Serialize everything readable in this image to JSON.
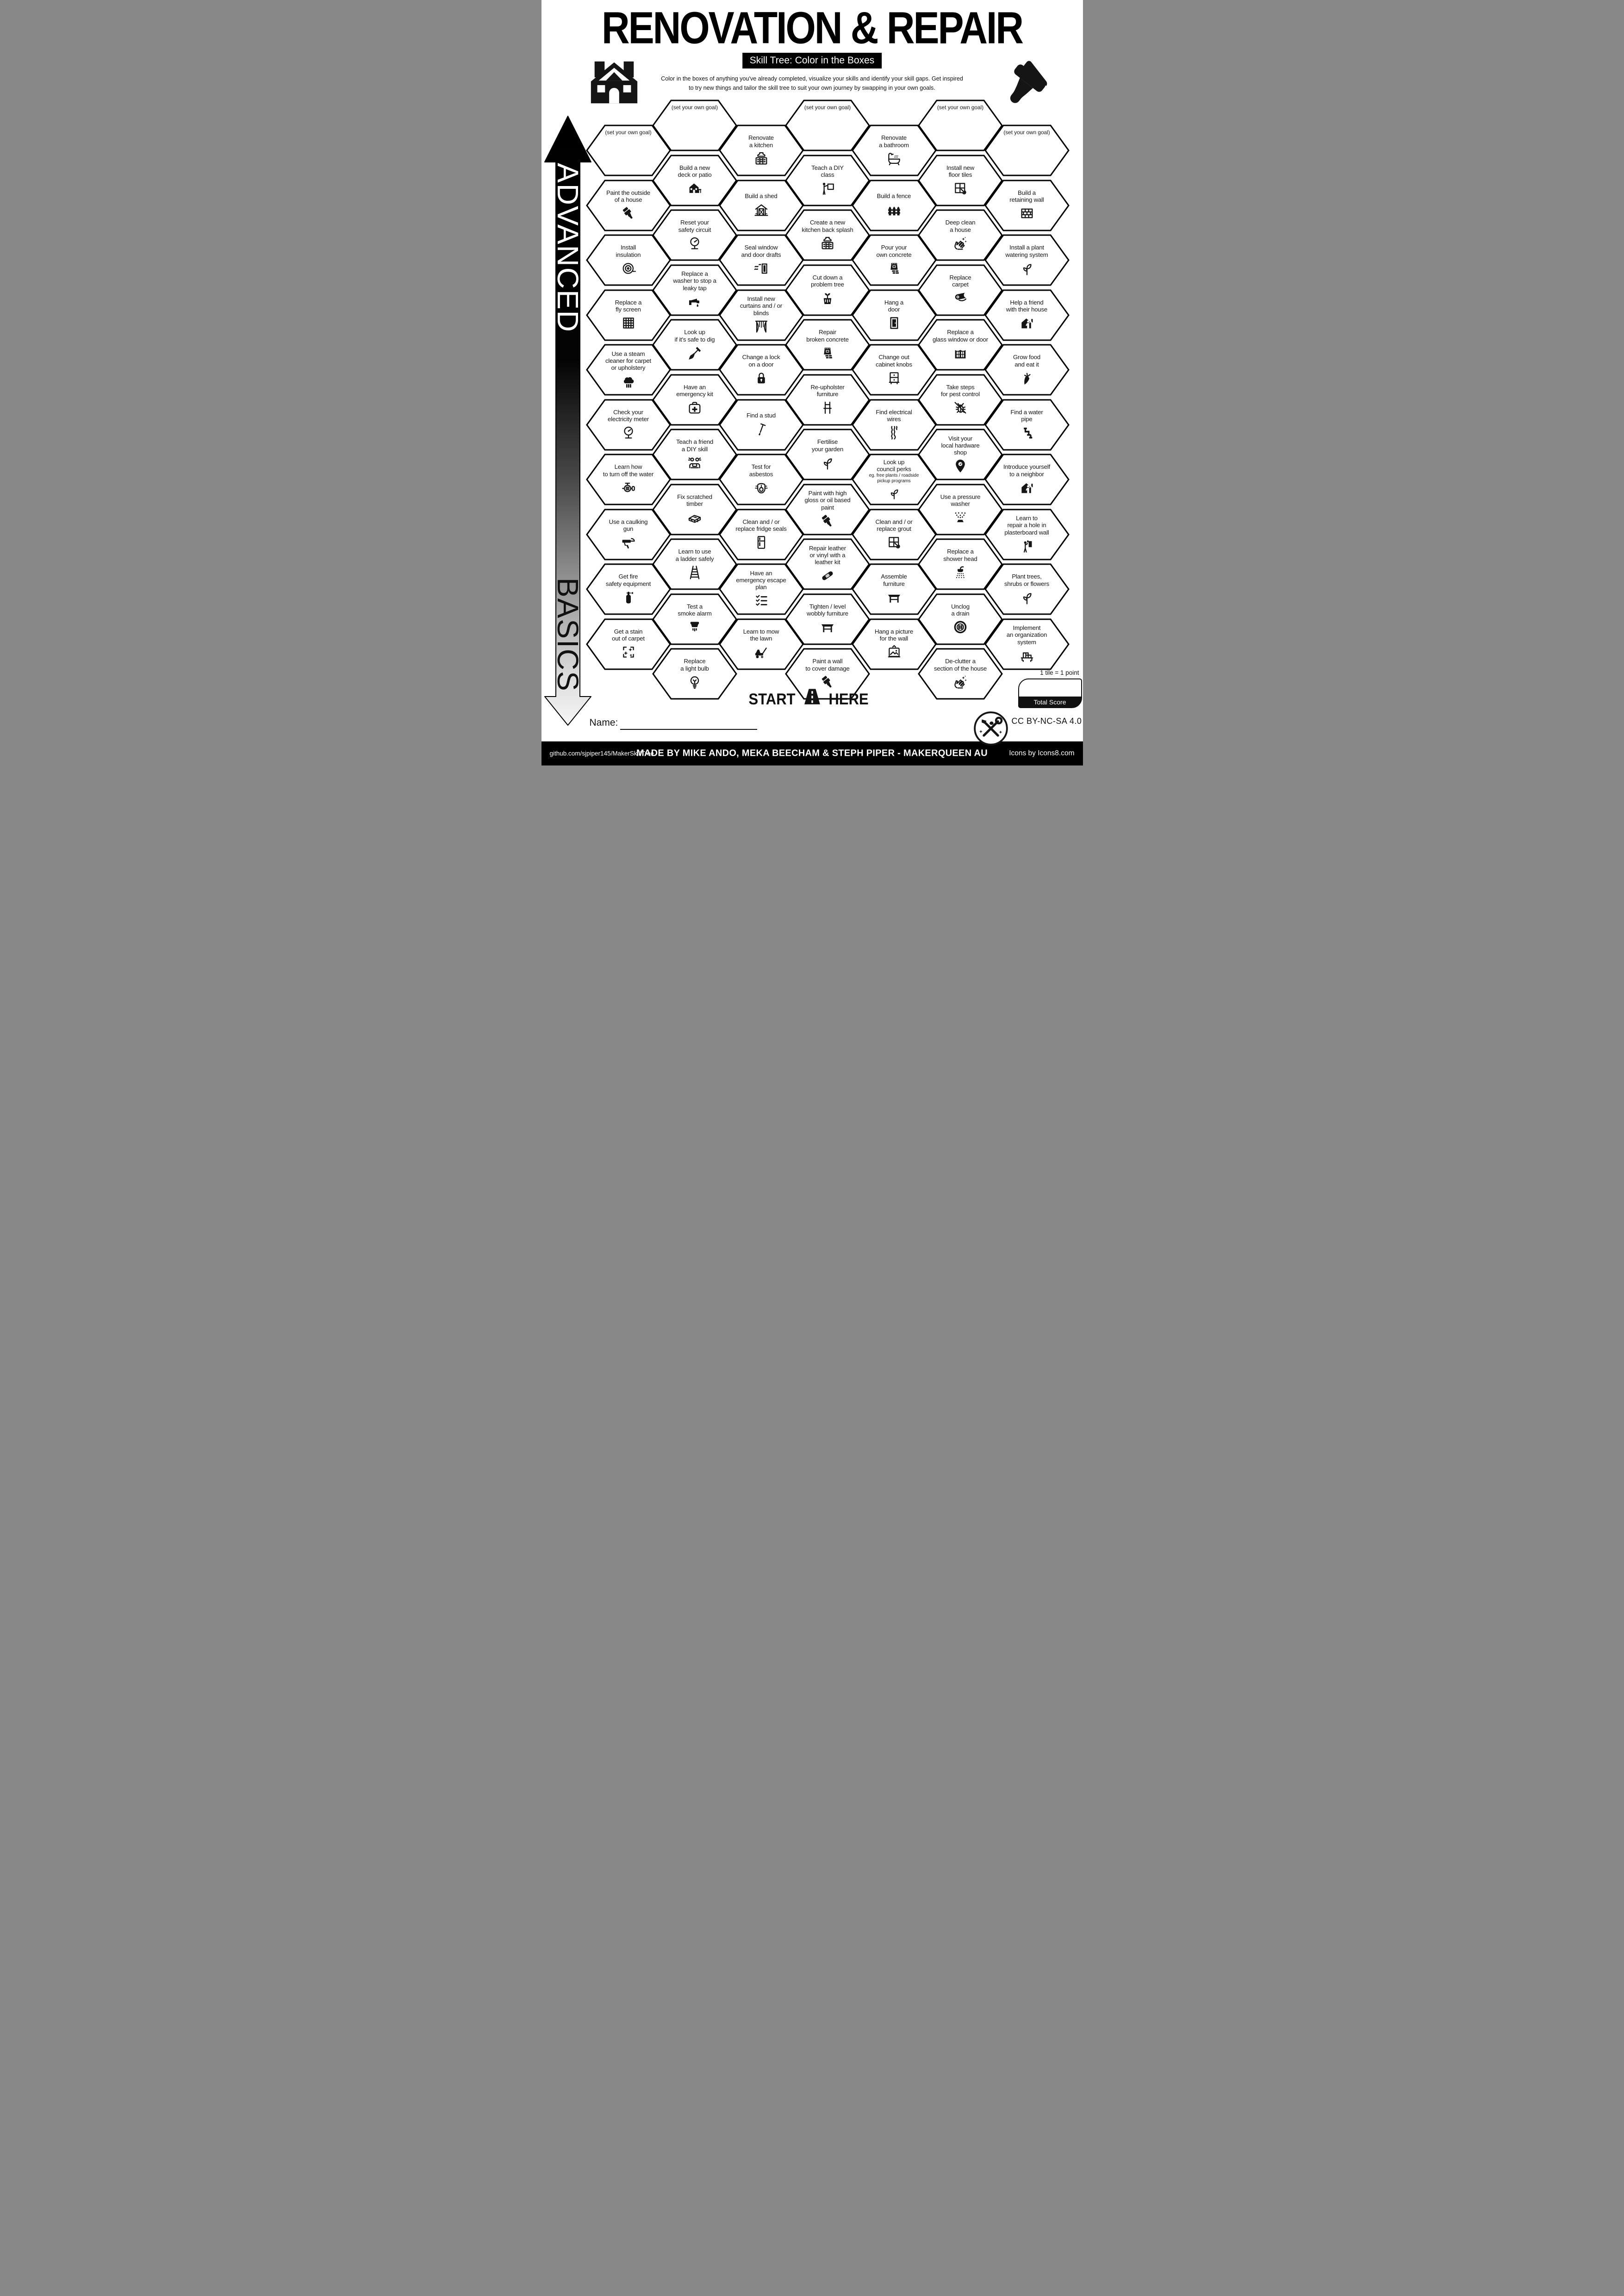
{
  "header": {
    "title": "RENOVATION & REPAIR",
    "subtitle": "Skill Tree: Color in the Boxes",
    "description": "Color in the boxes of anything you've already completed, visualize your skills and identify your skill gaps.  Get inspired\nto try new things and tailor the skill tree to suit your own journey by swapping in your own goals.",
    "house_icon": "house-logo",
    "brush_icon": "brush-logo"
  },
  "axis": {
    "top_label": "ADVANCED",
    "bottom_label": "BASICS"
  },
  "start_here": {
    "left_word": "START",
    "right_word": "HERE",
    "icon": "road"
  },
  "name_field": {
    "label": "Name:",
    "value": ""
  },
  "score": {
    "note": "1 tile = 1 point",
    "label": "Total Score",
    "value": ""
  },
  "license": "CC BY-NC-SA 4.0",
  "logo_icon": "tools-logo",
  "footer": {
    "left": "github.com/sjpiper145/MakerSkillTree",
    "center": "MADE BY MIKE ANDO, MEKA BEECHAM & STEPH PIPER  -  MAKERQUEEN AU",
    "right": "Icons by Icons8.com"
  },
  "accent_colors": {
    "ink": "#000000",
    "paper": "#ffffff"
  },
  "columns": [
    {
      "offset": "low",
      "tiles": [
        {
          "goal": true,
          "label": "(set your own goal)"
        },
        {
          "label": "Paint the outside\nof a house",
          "icon": "paintbrush"
        },
        {
          "label": "Install\ninsulation",
          "icon": "insulation"
        },
        {
          "label": "Replace a\nfly screen",
          "icon": "screen-grid"
        },
        {
          "label": "Use a steam\ncleaner for carpet\nor upholstery",
          "icon": "steam-cleaner"
        },
        {
          "label": "Check your\nelectricity meter",
          "icon": "meter-gauge"
        },
        {
          "label": "Learn how\nto turn off the water",
          "icon": "water-valve"
        },
        {
          "label": "Use a caulking\ngun",
          "icon": "caulking-gun"
        },
        {
          "label": "Get fire\nsafety equipment",
          "icon": "fire-extinguisher"
        },
        {
          "label": "Get a stain\nout of carpet",
          "icon": "sparkle-clean"
        }
      ]
    },
    {
      "offset": "high",
      "tiles": [
        {
          "goal": true,
          "label": "(set your own goal)"
        },
        {
          "label": "Build a new\ndeck or patio",
          "icon": "house-deck"
        },
        {
          "label": "Reset your\nsafety circuit",
          "icon": "meter-gauge"
        },
        {
          "label": "Replace a\nwasher to stop a\nleaky tap",
          "icon": "tap-drip"
        },
        {
          "label": "Look up\nif it's safe to dig",
          "icon": "shovel"
        },
        {
          "label": "Have an\nemergency kit",
          "icon": "first-aid-kit"
        },
        {
          "label": "Teach a friend\na DIY skill",
          "icon": "friends-laptop"
        },
        {
          "label": "Fix scratched\ntimber",
          "icon": "timber-plank"
        },
        {
          "label": "Learn to use\na ladder safely",
          "icon": "ladder"
        },
        {
          "label": "Test a\nsmoke alarm",
          "icon": "smoke-alarm"
        },
        {
          "label": "Replace\na light bulb",
          "icon": "light-bulb"
        }
      ]
    },
    {
      "offset": "low",
      "tiles": [
        {
          "label": "Renovate\na kitchen",
          "icon": "kitchen-cabinet"
        },
        {
          "label": "Build a shed",
          "icon": "shed"
        },
        {
          "label": "Seal window\nand door drafts",
          "icon": "door-draft"
        },
        {
          "label": "Install new\ncurtains and / or\nblinds",
          "icon": "curtains"
        },
        {
          "label": "Change a lock\non a door",
          "icon": "padlock"
        },
        {
          "label": "Find a stud",
          "icon": "nail"
        },
        {
          "label": "Test for\nasbestos",
          "icon": "respirator"
        },
        {
          "label": "Clean and / or\nreplace fridge seals",
          "icon": "fridge-seal"
        },
        {
          "label": "Have an\nemergency escape\nplan",
          "icon": "checklist"
        },
        {
          "label": "Learn to mow\nthe lawn",
          "icon": "lawn-mower"
        }
      ]
    },
    {
      "offset": "high",
      "tiles": [
        {
          "goal": true,
          "label": "(set your own goal)"
        },
        {
          "label": "Teach a DIY\nclass",
          "icon": "teach-board"
        },
        {
          "label": "Create a new\nkitchen back splash",
          "icon": "kitchen-cabinet"
        },
        {
          "label": "Cut down a\nproblem tree",
          "icon": "tree-stump"
        },
        {
          "label": "Repair\nbroken concrete",
          "icon": "concrete-bag"
        },
        {
          "label": "Re-upholster\nfurniture",
          "icon": "chair"
        },
        {
          "label": "Fertilise\nyour garden",
          "icon": "plant-sprout"
        },
        {
          "label": "Paint with high\ngloss or oil based\npaint",
          "icon": "paintbrush"
        },
        {
          "label": "Repair leather\nor vinyl with a\nleather kit",
          "icon": "bandage"
        },
        {
          "label": "Tighten / level\nwobbly furniture",
          "icon": "table"
        },
        {
          "label": "Paint a wall\nto cover damage",
          "icon": "paintbrush"
        }
      ]
    },
    {
      "offset": "low",
      "tiles": [
        {
          "label": "Renovate\na bathroom",
          "icon": "bathtub"
        },
        {
          "label": "Build a fence",
          "icon": "fence"
        },
        {
          "label": "Pour your\nown concrete",
          "icon": "concrete-bag"
        },
        {
          "label": "Hang a\ndoor",
          "icon": "door"
        },
        {
          "label": "Change out\ncabinet knobs",
          "icon": "drawer-knobs"
        },
        {
          "label": "Find electrical\nwires",
          "icon": "electrical-wires"
        },
        {
          "label": "Look up\ncouncil perks",
          "note": "eg. free plants / roadside\npickup programs",
          "icon": "plant-sprout"
        },
        {
          "label": "Clean and / or\nreplace grout",
          "icon": "tile-trowel"
        },
        {
          "label": "Assemble\nfurniture",
          "icon": "table"
        },
        {
          "label": "Hang a picture\nfor the wall",
          "icon": "picture-frame"
        }
      ]
    },
    {
      "offset": "high",
      "tiles": [
        {
          "goal": true,
          "label": "(set your own goal)"
        },
        {
          "label": "Install new\nfloor tiles",
          "icon": "tile-trowel"
        },
        {
          "label": "Deep clean\na house",
          "icon": "clean-sparkle-hand"
        },
        {
          "label": "Replace\ncarpet",
          "icon": "carpet-roll"
        },
        {
          "label": "Replace a\nglass window or door",
          "icon": "arch-window"
        },
        {
          "label": "Take steps\nfor pest control",
          "icon": "bug-slash"
        },
        {
          "label": "Visit your\nlocal hardware\nshop",
          "icon": "map-pin"
        },
        {
          "label": "Use a pressure\nwasher",
          "icon": "pressure-spray"
        },
        {
          "label": "Replace a\nshower head",
          "icon": "shower-head"
        },
        {
          "label": "Unclog\na drain",
          "icon": "drain"
        },
        {
          "label": "De-clutter a\nsection of the house",
          "icon": "clean-sparkle-hand"
        }
      ]
    },
    {
      "offset": "low",
      "tiles": [
        {
          "goal": true,
          "label": "(set your own goal)"
        },
        {
          "label": "Build a\nretaining wall",
          "icon": "brick-wall"
        },
        {
          "label": "Install a plant\nwatering system",
          "icon": "plant-sprout"
        },
        {
          "label": "Help a friend\nwith their house",
          "icon": "house-person"
        },
        {
          "label": "Grow food\nand eat it",
          "icon": "carrot"
        },
        {
          "label": "Find a water\npipe",
          "icon": "water-pipe"
        },
        {
          "label": "Introduce yourself\nto a neighbor",
          "icon": "house-person"
        },
        {
          "label": "Learn to\nrepair a hole in\nplasterboard wall",
          "icon": "plaster-repair"
        },
        {
          "label": "Plant trees,\nshrubs or flowers",
          "icon": "plant-sprout"
        },
        {
          "label": "Implement\nan organization\nsystem",
          "icon": "shelf-organize"
        }
      ]
    }
  ]
}
